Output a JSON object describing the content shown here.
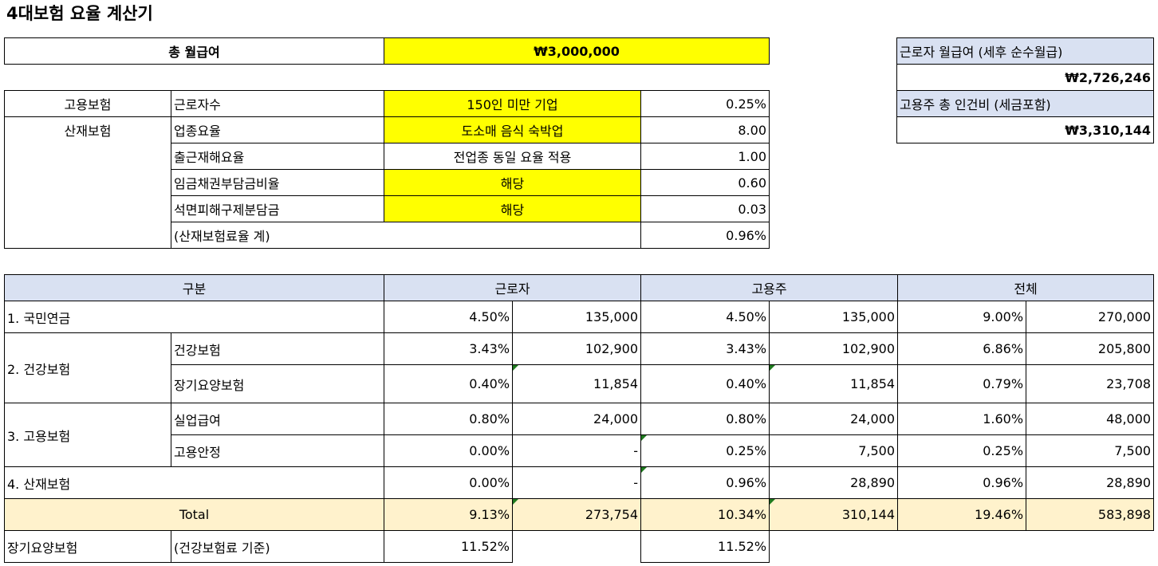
{
  "title": "4대보험 요율 계산기",
  "salary": {
    "label": "총 월급여",
    "value": "₩3,000,000"
  },
  "summary": {
    "net_label": "근로자 월급여 (세후 순수월급)",
    "net_value": "₩2,726,246",
    "cost_label": "고용주 총 인건비 (세금포함)",
    "cost_value": "₩3,310,144"
  },
  "rates": {
    "employment_label": "고용보험",
    "accident_label": "산재보험",
    "rows": [
      {
        "label": "근로자수",
        "value": "150인 미만 기업",
        "rate": "0.25%"
      },
      {
        "label": "업종요율",
        "value": "도소매 음식 숙박업",
        "rate": "8.00"
      },
      {
        "label": "출근재해요율",
        "value": "전업종 동일 요율 적용",
        "rate": "1.00"
      },
      {
        "label": "임금채권부담금비율",
        "value": "해당",
        "rate": "0.60"
      },
      {
        "label": "석면피해구제분담금",
        "value": "해당",
        "rate": "0.03"
      }
    ],
    "sum_label": "(산재보험료율 계)",
    "sum_rate": "0.96%"
  },
  "main": {
    "headers": {
      "category": "구분",
      "worker": "근로자",
      "employer": "고용주",
      "total": "전체"
    },
    "pension": {
      "label": "1. 국민연금",
      "w_rate": "4.50%",
      "w_amt": "135,000",
      "e_rate": "4.50%",
      "e_amt": "135,000",
      "t_rate": "9.00%",
      "t_amt": "270,000"
    },
    "health": {
      "label": "2. 건강보험",
      "health_sub": {
        "label": "건강보험",
        "w_rate": "3.43%",
        "w_amt": "102,900",
        "e_rate": "3.43%",
        "e_amt": "102,900",
        "t_rate": "6.86%",
        "t_amt": "205,800"
      },
      "ltc_sub": {
        "label": "장기요양보험",
        "w_rate": "0.40%",
        "w_amt": "11,854",
        "e_rate": "0.40%",
        "e_amt": "11,854",
        "t_rate": "0.79%",
        "t_amt": "23,708"
      }
    },
    "employment": {
      "label": "3. 고용보험",
      "unemp_sub": {
        "label": "실업급여",
        "w_rate": "0.80%",
        "w_amt": "24,000",
        "e_rate": "0.80%",
        "e_amt": "24,000",
        "t_rate": "1.60%",
        "t_amt": "48,000"
      },
      "stab_sub": {
        "label": "고용안정",
        "w_rate": "0.00%",
        "w_amt": "-",
        "e_rate": "0.25%",
        "e_amt": "7,500",
        "t_rate": "0.25%",
        "t_amt": "7,500"
      }
    },
    "accident": {
      "label": "4. 산재보험",
      "w_rate": "0.00%",
      "w_amt": "-",
      "e_rate": "0.96%",
      "e_amt": "28,890",
      "t_rate": "0.96%",
      "t_amt": "28,890"
    },
    "total": {
      "label": "Total",
      "w_rate": "9.13%",
      "w_amt": "273,754",
      "e_rate": "10.34%",
      "e_amt": "310,144",
      "t_rate": "19.46%",
      "t_amt": "583,898"
    },
    "ltc_basis": {
      "label": "장기요양보험",
      "note": "(건강보험료 기준)",
      "w_rate": "11.52%",
      "e_rate": "11.52%"
    }
  },
  "colors": {
    "input_yellow": "#ffff00",
    "header_blue": "#d9e1f2",
    "total_cream": "#fff2cc",
    "indicator_green": "#1f7a1f"
  }
}
